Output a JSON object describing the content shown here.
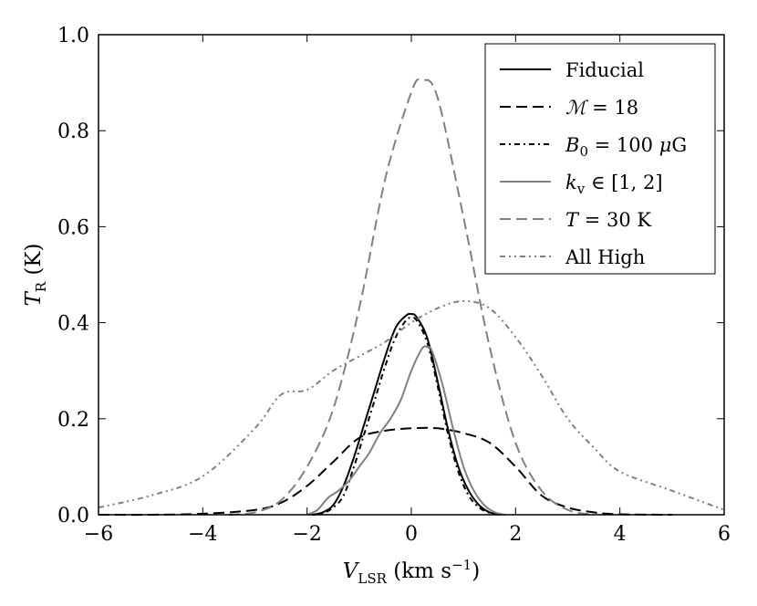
{
  "chart_data": {
    "type": "line",
    "xlabel": "V_LSR (km s^-1)",
    "xlabel_parts": {
      "main": "V",
      "sub": "LSR",
      "unit": " (km s",
      "exp": "−1",
      "close": ")"
    },
    "ylabel": "T_R (K)",
    "ylabel_parts": {
      "main": "T",
      "sub": "R",
      "unit": " (K)"
    },
    "xlim": [
      -6,
      6
    ],
    "ylim": [
      0,
      1.0
    ],
    "xticks": [
      -6,
      -4,
      -2,
      0,
      2,
      4,
      6
    ],
    "xtick_labels": [
      "−6",
      "−4",
      "−2",
      "0",
      "2",
      "4",
      "6"
    ],
    "yticks": [
      0,
      0.2,
      0.4,
      0.6,
      0.8,
      1.0
    ],
    "ytick_labels": [
      "0.0",
      "0.2",
      "0.4",
      "0.6",
      "0.8",
      "1.0"
    ],
    "legend_position": "top-right",
    "series": [
      {
        "name": "Fiducial",
        "legend": {
          "pre": "Fiducial"
        },
        "color": "#000000",
        "dash": "",
        "x": [
          -1.9,
          -1.7,
          -1.5,
          -1.3,
          -1.1,
          -0.9,
          -0.7,
          -0.5,
          -0.3,
          -0.1,
          0.0,
          0.1,
          0.3,
          0.5,
          0.7,
          0.9,
          1.1,
          1.3,
          1.5,
          1.7
        ],
        "y": [
          0.0,
          0.005,
          0.02,
          0.06,
          0.12,
          0.19,
          0.26,
          0.33,
          0.39,
          0.415,
          0.418,
          0.412,
          0.37,
          0.28,
          0.18,
          0.1,
          0.05,
          0.02,
          0.005,
          0.0
        ]
      },
      {
        "name": "M = 18",
        "legend": {
          "italic": "ℳ",
          "post": " = 18"
        },
        "color": "#000000",
        "dash": "12,6",
        "x": [
          -6.0,
          -5.0,
          -4.0,
          -3.0,
          -2.5,
          -2.0,
          -1.5,
          -1.0,
          -0.5,
          0.0,
          0.5,
          1.0,
          1.5,
          2.0,
          2.5,
          3.0,
          3.5,
          4.0,
          5.0
        ],
        "y": [
          0.0,
          0.0,
          0.002,
          0.01,
          0.025,
          0.06,
          0.11,
          0.16,
          0.175,
          0.18,
          0.18,
          0.17,
          0.15,
          0.1,
          0.04,
          0.015,
          0.005,
          0.001,
          0.0
        ]
      },
      {
        "name": "B0 = 100 μG",
        "legend": {
          "italic": "B",
          "sub": "0",
          "post": " = 100 ",
          "italic2": "μ",
          "post2": "G"
        },
        "color": "#000000",
        "dash": "6,4,2,4",
        "x": [
          -1.9,
          -1.7,
          -1.5,
          -1.3,
          -1.1,
          -0.9,
          -0.7,
          -0.5,
          -0.3,
          -0.1,
          0.0,
          0.1,
          0.3,
          0.5,
          0.7,
          0.9,
          1.1,
          1.3,
          1.5,
          1.7
        ],
        "y": [
          0.0,
          0.003,
          0.015,
          0.04,
          0.1,
          0.17,
          0.24,
          0.31,
          0.37,
          0.405,
          0.41,
          0.405,
          0.36,
          0.27,
          0.17,
          0.09,
          0.04,
          0.015,
          0.004,
          0.0
        ]
      },
      {
        "name": "kv ∈ [1,2]",
        "legend": {
          "italic": "k",
          "sub": "v",
          "post": " ∈ [1, 2]"
        },
        "color": "#808080",
        "dash": "",
        "x": [
          -2.0,
          -1.8,
          -1.6,
          -1.4,
          -1.2,
          -1.0,
          -0.8,
          -0.6,
          -0.4,
          -0.2,
          0.0,
          0.2,
          0.3,
          0.4,
          0.6,
          0.8,
          1.0,
          1.2,
          1.4,
          1.6,
          1.8
        ],
        "y": [
          0.0,
          0.01,
          0.035,
          0.05,
          0.07,
          0.1,
          0.13,
          0.17,
          0.2,
          0.24,
          0.3,
          0.345,
          0.35,
          0.34,
          0.27,
          0.18,
          0.1,
          0.05,
          0.02,
          0.005,
          0.0
        ]
      },
      {
        "name": "T = 30 K",
        "legend": {
          "italic": "T",
          "post": " = 30 K"
        },
        "color": "#808080",
        "dash": "12,6",
        "x": [
          -3.5,
          -3.0,
          -2.5,
          -2.0,
          -1.5,
          -1.0,
          -0.5,
          0.0,
          0.2,
          0.5,
          1.0,
          1.5,
          2.0,
          2.5,
          3.0,
          3.5
        ],
        "y": [
          0.0,
          0.005,
          0.03,
          0.1,
          0.22,
          0.43,
          0.7,
          0.88,
          0.905,
          0.87,
          0.62,
          0.35,
          0.15,
          0.05,
          0.01,
          0.0
        ]
      },
      {
        "name": "All High",
        "legend": {
          "pre": "All High"
        },
        "color": "#808080",
        "dash": "6,4,2,4,2,4",
        "x": [
          -6.0,
          -5.0,
          -4.0,
          -3.0,
          -2.5,
          -2.0,
          -1.5,
          -1.0,
          -0.5,
          0.0,
          0.5,
          1.0,
          1.5,
          2.0,
          2.5,
          3.0,
          3.5,
          4.0,
          5.0,
          6.0
        ],
        "y": [
          0.015,
          0.04,
          0.08,
          0.18,
          0.25,
          0.26,
          0.3,
          0.33,
          0.36,
          0.4,
          0.43,
          0.445,
          0.43,
          0.37,
          0.29,
          0.2,
          0.14,
          0.09,
          0.05,
          0.01
        ]
      }
    ]
  }
}
